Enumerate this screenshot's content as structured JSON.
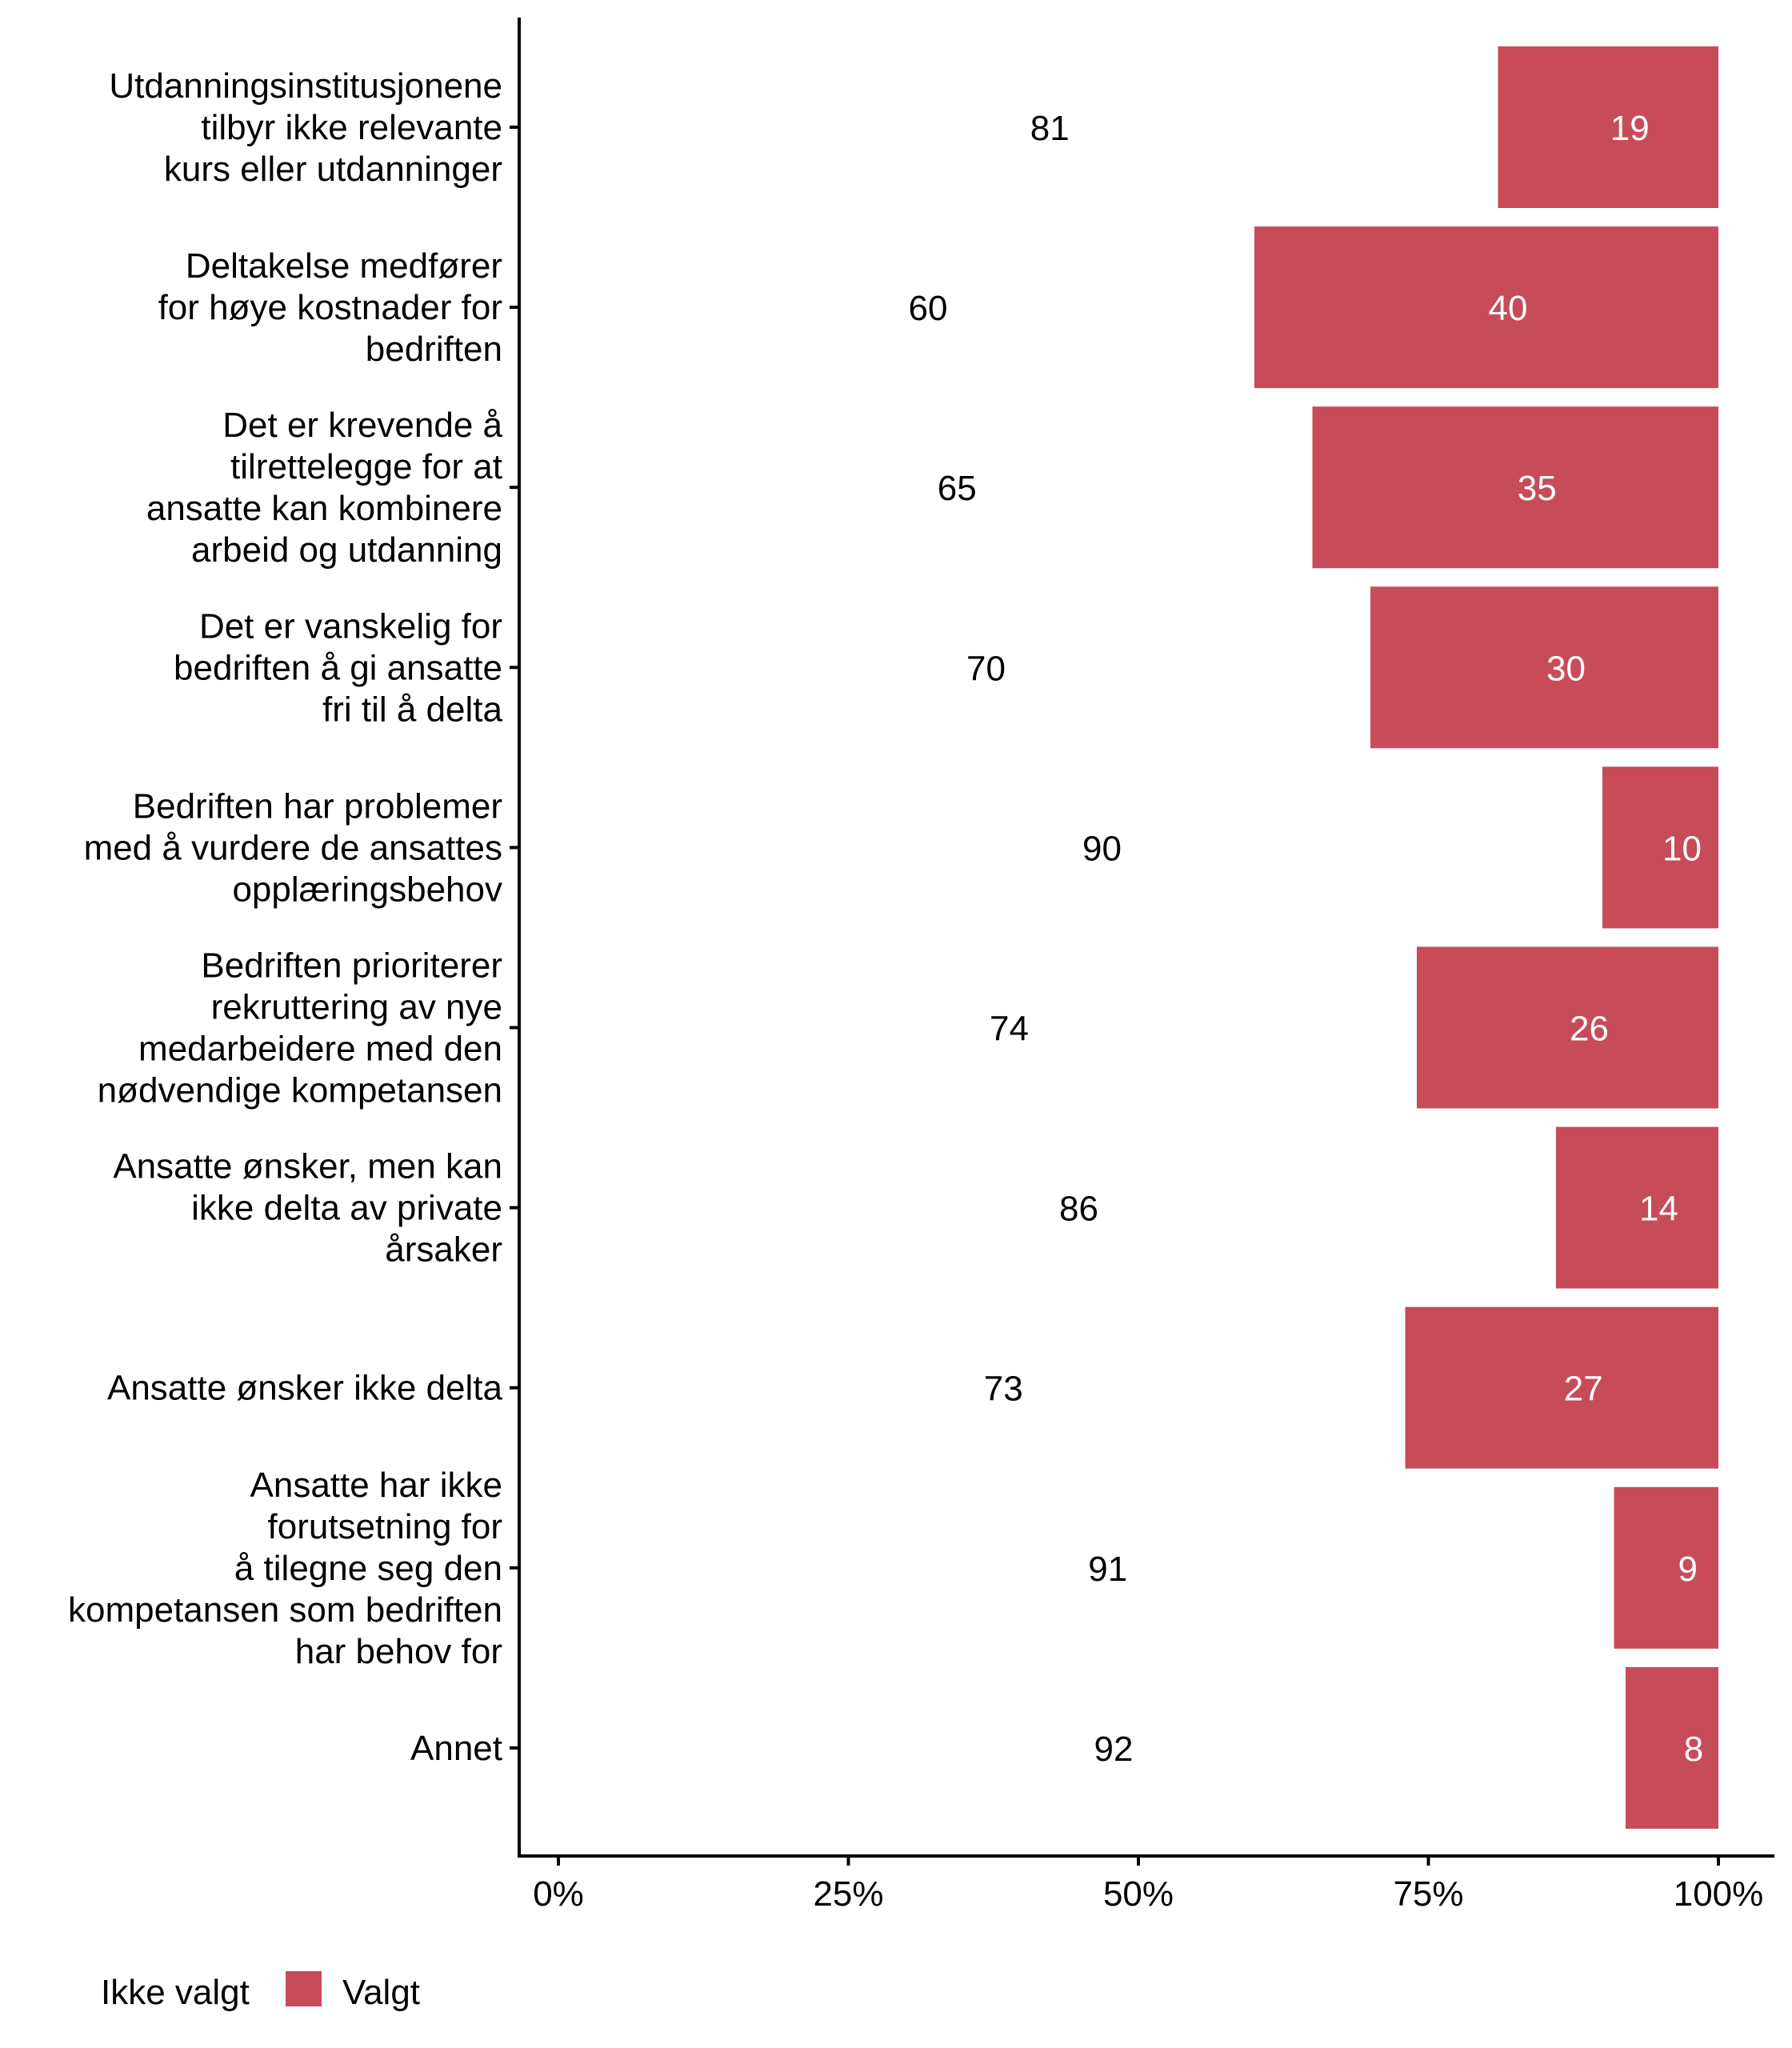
{
  "chart_data": {
    "type": "bar",
    "orientation": "horizontal",
    "stacked": true,
    "percent": true,
    "title": "",
    "xlabel": "",
    "ylabel": "",
    "xlim": [
      0,
      100
    ],
    "x_ticks": [
      "0%",
      "25%",
      "50%",
      "75%",
      "100%"
    ],
    "x_tick_values": [
      0,
      25,
      50,
      75,
      100
    ],
    "grid": false,
    "legend_position": "bottom-left",
    "categories": [
      [
        "Utdanningsinstitusjonene",
        "tilbyr ikke relevante",
        "kurs eller utdanninger"
      ],
      [
        "Deltakelse medfører",
        "for høye kostnader for",
        "bedriften"
      ],
      [
        "Det er krevende å",
        "tilrettelegge for at",
        "ansatte kan kombinere",
        "arbeid og utdanning"
      ],
      [
        "Det er vanskelig for",
        "bedriften å gi ansatte",
        "fri til å delta"
      ],
      [
        "Bedriften har problemer",
        "med å vurdere de ansattes",
        "opplæringsbehov"
      ],
      [
        "Bedriften prioriterer",
        "rekruttering av nye",
        "medarbeidere med den",
        "nødvendige kompetansen"
      ],
      [
        "Ansatte ønsker, men kan",
        "ikke delta av private",
        "årsaker"
      ],
      [
        "Ansatte ønsker ikke delta"
      ],
      [
        "Ansatte har ikke",
        "forutsetning for",
        "å tilegne seg den",
        "kompetansen som bedriften",
        "har behov for"
      ],
      [
        "Annet"
      ]
    ],
    "series": [
      {
        "name": "Ikke valgt",
        "color": "#ffffff",
        "label_color": "#000000",
        "values": [
          81,
          60,
          65,
          70,
          90,
          74,
          86,
          73,
          91,
          92
        ]
      },
      {
        "name": "Valgt",
        "color": "#c84b5a",
        "label_color": "#ffffff",
        "values": [
          19,
          40,
          35,
          30,
          10,
          26,
          14,
          27,
          9,
          8
        ]
      }
    ]
  },
  "legend": {
    "items": [
      {
        "label": "Ikke valgt",
        "color": "#ffffff"
      },
      {
        "label": "Valgt",
        "color": "#c84b5a"
      }
    ]
  }
}
